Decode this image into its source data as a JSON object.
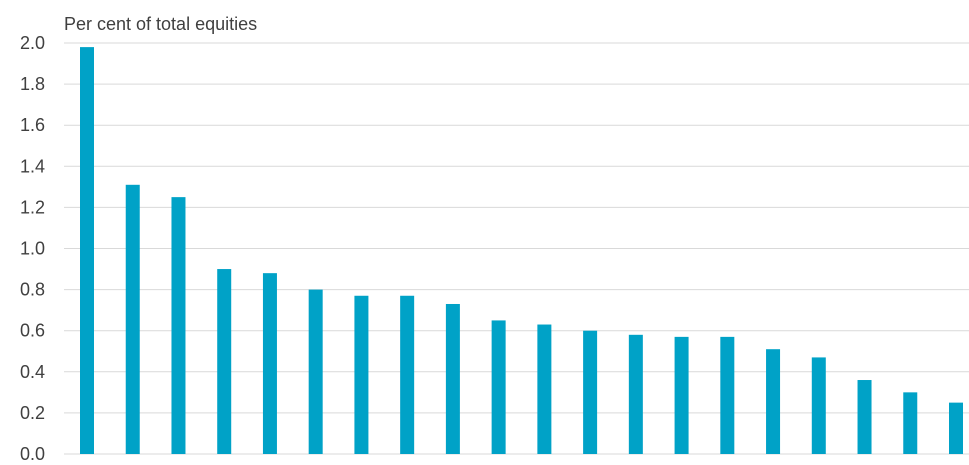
{
  "chart_data": {
    "type": "bar",
    "title": "",
    "ylabel": "Per cent of total equities",
    "xlabel": "",
    "ylim": [
      0,
      2.0
    ],
    "yticks": [
      "0.0",
      "0.2",
      "0.4",
      "0.6",
      "0.8",
      "1.0",
      "1.2",
      "1.4",
      "1.6",
      "1.8",
      "2.0"
    ],
    "grid": true,
    "legend": "none",
    "values": [
      1.98,
      1.31,
      1.25,
      0.9,
      0.88,
      0.8,
      0.77,
      0.77,
      0.73,
      0.65,
      0.63,
      0.6,
      0.58,
      0.57,
      0.57,
      0.51,
      0.47,
      0.36,
      0.3,
      0.25
    ],
    "bar_color": "#00a2c7",
    "grid_color": "#d9d9d9",
    "text_color": "#404040"
  }
}
